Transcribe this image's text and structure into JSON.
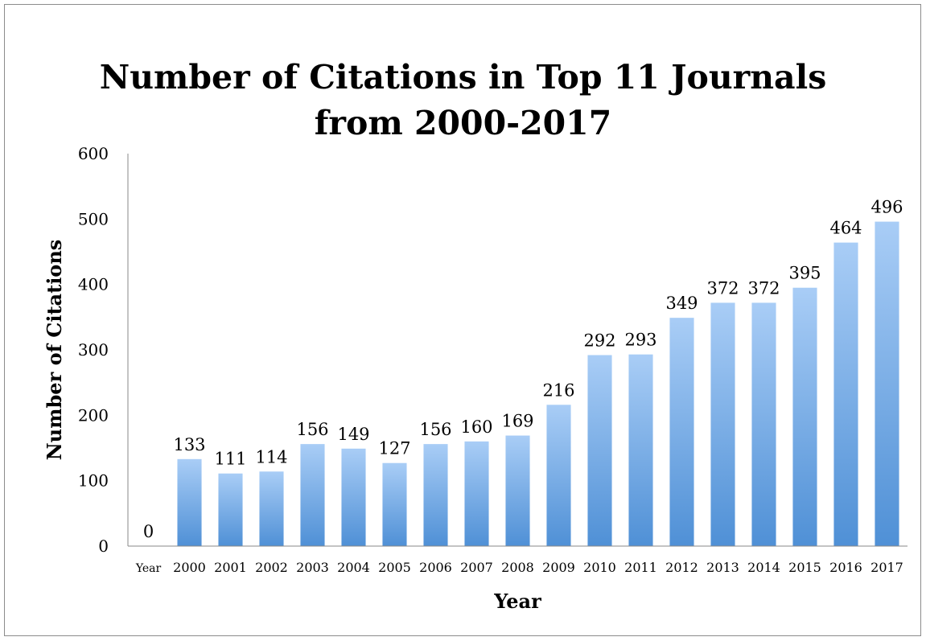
{
  "chart_data": {
    "type": "bar",
    "title": "Number of Citations in Top 11 Journals\nfrom 2000-2017",
    "xlabel": "Year",
    "ylabel": "Number of Citations",
    "categories": [
      "Year",
      "2000",
      "2001",
      "2002",
      "2003",
      "2004",
      "2005",
      "2006",
      "2007",
      "2008",
      "2009",
      "2010",
      "2011",
      "2012",
      "2013",
      "2014",
      "2015",
      "2016",
      "2017"
    ],
    "values": [
      0,
      133,
      111,
      114,
      156,
      149,
      127,
      156,
      160,
      169,
      216,
      292,
      293,
      349,
      372,
      372,
      395,
      464,
      496
    ],
    "ylim": [
      0,
      600
    ],
    "yticks": [
      0,
      100,
      200,
      300,
      400,
      500,
      600
    ],
    "grid": false,
    "legend": "none",
    "data_labels": true,
    "colors": {
      "bar_top": "#a9cdf6",
      "bar_bottom": "#4f90d6",
      "axis": "#888888",
      "frame": "#8c8c8c"
    }
  }
}
